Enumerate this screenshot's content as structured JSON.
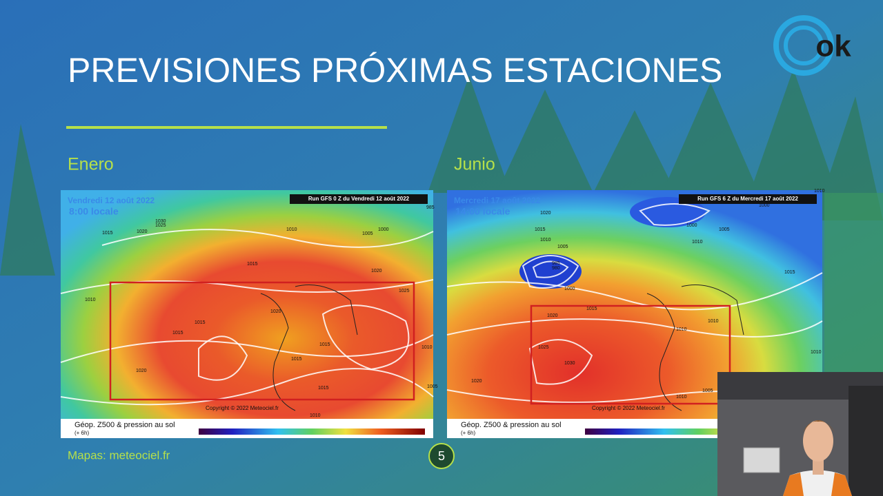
{
  "slide": {
    "title": "PREVISIONES PRÓXIMAS ESTACIONES",
    "source": "Mapas: meteociel.fr",
    "page_number": "5",
    "logo": "ok"
  },
  "maps": [
    {
      "label": "Enero",
      "date": "Vendredi 12 août 2022",
      "time": "8:00 locale",
      "run": "Run GFS 0 Z du Vendredi 12 août 2022",
      "copyright": "Copyright © 2022 Meteociel.fr",
      "legend_title": "Géop. Z500 & pression au sol",
      "lead": "(+ 6h)",
      "isobars": [
        "1030",
        "1025",
        "1015",
        "1020",
        "1010",
        "1015",
        "1000",
        "1005",
        "985",
        "1010",
        "1015",
        "1015",
        "1020",
        "1025",
        "1020",
        "1015",
        "1015",
        "1020",
        "1015",
        "1010",
        "1010",
        "1005"
      ]
    },
    {
      "label": "Junio",
      "date": "Mercredi 17 août 2022",
      "time": "14:00 locale",
      "run": "Run GFS 6 Z du Mercredi 17 août 2022",
      "copyright": "Copyright © 2022 Meteociel.fr",
      "legend_title": "Géop. Z500 & pression au sol",
      "lead": "(+ 6h)",
      "isobars": [
        "1010",
        "1000",
        "1020",
        "1015",
        "1000",
        "1005",
        "1010",
        "1005",
        "1010",
        "985",
        "980",
        "1000",
        "1015",
        "1015",
        "1020",
        "1025",
        "1030",
        "1010",
        "1010",
        "1020",
        "1010",
        "1010",
        "1005"
      ]
    }
  ]
}
